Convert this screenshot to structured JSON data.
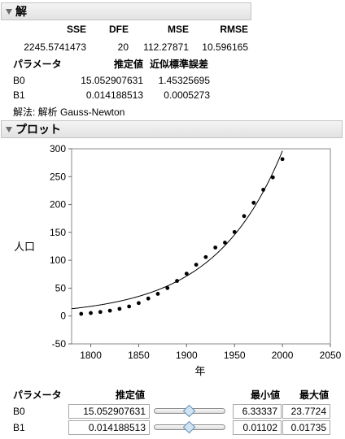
{
  "solution": {
    "title": "解",
    "stats_headers": [
      "SSE",
      "DFE",
      "MSE",
      "RMSE"
    ],
    "stats_values": [
      "2245.5741473",
      "20",
      "112.27871",
      "10.596165"
    ],
    "param_headers": [
      "パラメータ",
      "推定値",
      "近似標準誤差"
    ],
    "params": [
      {
        "name": "B0",
        "estimate": "15.052907631",
        "stderr": "1.45325695"
      },
      {
        "name": "B1",
        "estimate": "0.014188513",
        "stderr": "0.0005273"
      }
    ],
    "method": "解法: 解析 Gauss-Newton"
  },
  "plot": {
    "title": "プロット"
  },
  "chart_data": {
    "type": "scatter",
    "xlabel": "年",
    "ylabel": "人口",
    "xlim": [
      1780,
      2050
    ],
    "ylim": [
      -50,
      300
    ],
    "x_ticks": [
      "1800",
      "1850",
      "1900",
      "1950",
      "2000",
      "2050"
    ],
    "y_ticks": [
      "-50",
      "0",
      "50",
      "100",
      "150",
      "200",
      "250",
      "300"
    ],
    "points": {
      "x": [
        1790,
        1800,
        1810,
        1820,
        1830,
        1840,
        1850,
        1860,
        1870,
        1880,
        1890,
        1900,
        1910,
        1920,
        1930,
        1940,
        1950,
        1960,
        1970,
        1980,
        1990,
        2000
      ],
      "y": [
        3.9,
        5.3,
        7.2,
        9.6,
        12.9,
        17.1,
        23.2,
        31.4,
        39.8,
        50.2,
        62.9,
        76.0,
        92.0,
        105.7,
        122.8,
        131.7,
        150.7,
        179.3,
        203.2,
        226.5,
        248.7,
        281.4
      ]
    },
    "fit": {
      "B0": 15.052907631,
      "B1": 0.014188513,
      "x0": 1790
    },
    "grid": false,
    "legend": "none"
  },
  "profiler": {
    "headers": [
      "パラメータ",
      "推定値",
      "最小値",
      "最大値"
    ],
    "rows": [
      {
        "name": "B0",
        "value": "15.052907631",
        "min": "6.33337",
        "max": "23.7724",
        "position": 0.5
      },
      {
        "name": "B1",
        "value": "0.014188513",
        "min": "0.01102",
        "max": "0.01735",
        "position": 0.5
      }
    ]
  }
}
